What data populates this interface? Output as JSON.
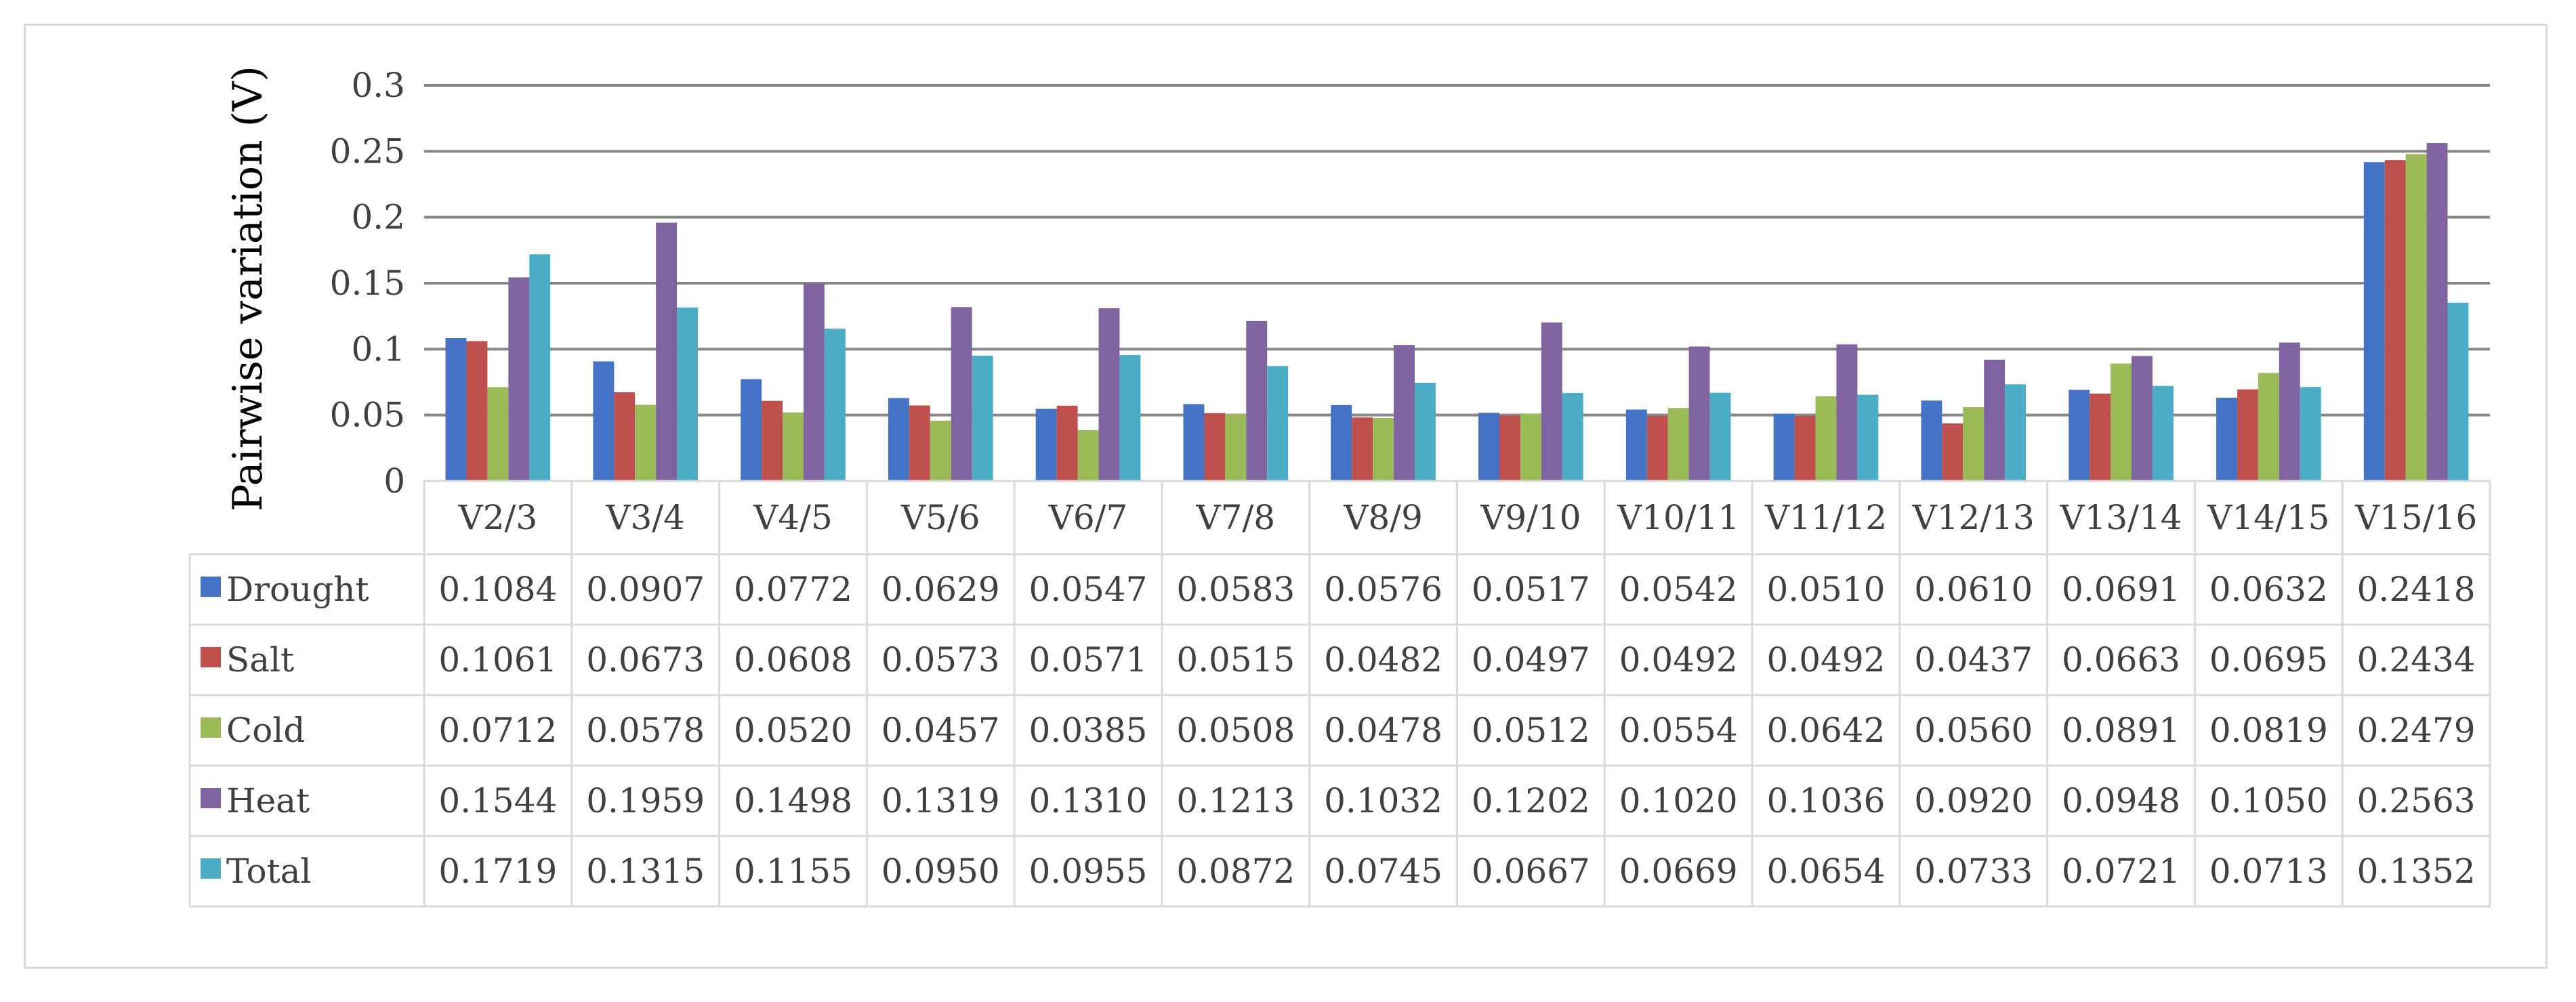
{
  "chart_data": {
    "type": "bar",
    "ylabel": "Pairwise variation (V)",
    "ylim": [
      0,
      0.3
    ],
    "yticks": [
      "0",
      "0.05",
      "0.1",
      "0.15",
      "0.2",
      "0.25",
      "0.3"
    ],
    "ytick_values": [
      0,
      0.05,
      0.1,
      0.15,
      0.2,
      0.25,
      0.3
    ],
    "grid": true,
    "legend": "data-table",
    "categories": [
      "V2/3",
      "V3/4",
      "V4/5",
      "V5/6",
      "V6/7",
      "V7/8",
      "V8/9",
      "V9/10",
      "V10/11",
      "V11/12",
      "V12/13",
      "V13/14",
      "V14/15",
      "V15/16"
    ],
    "series": [
      {
        "name": "Drought",
        "color": "#4472c4",
        "values": [
          0.1084,
          0.0907,
          0.0772,
          0.0629,
          0.0547,
          0.0583,
          0.0576,
          0.0517,
          0.0542,
          0.051,
          0.061,
          0.0691,
          0.0632,
          0.2418
        ],
        "labels": [
          "0.1084",
          "0.0907",
          "0.0772",
          "0.0629",
          "0.0547",
          "0.0583",
          "0.0576",
          "0.0517",
          "0.0542",
          "0.0510",
          "0.0610",
          "0.0691",
          "0.0632",
          "0.2418"
        ]
      },
      {
        "name": "Salt",
        "color": "#c0504d",
        "values": [
          0.1061,
          0.0673,
          0.0608,
          0.0573,
          0.0571,
          0.0515,
          0.0482,
          0.0497,
          0.0492,
          0.0492,
          0.0437,
          0.0663,
          0.0695,
          0.2434
        ],
        "labels": [
          "0.1061",
          "0.0673",
          "0.0608",
          "0.0573",
          "0.0571",
          "0.0515",
          "0.0482",
          "0.0497",
          "0.0492",
          "0.0492",
          "0.0437",
          "0.0663",
          "0.0695",
          "0.2434"
        ]
      },
      {
        "name": "Cold",
        "color": "#9bbb59",
        "values": [
          0.0712,
          0.0578,
          0.052,
          0.0457,
          0.0385,
          0.0508,
          0.0478,
          0.0512,
          0.0554,
          0.0642,
          0.056,
          0.0891,
          0.0819,
          0.2479
        ],
        "labels": [
          "0.0712",
          "0.0578",
          "0.0520",
          "0.0457",
          "0.0385",
          "0.0508",
          "0.0478",
          "0.0512",
          "0.0554",
          "0.0642",
          "0.0560",
          "0.0891",
          "0.0819",
          "0.2479"
        ]
      },
      {
        "name": "Heat",
        "color": "#8064a2",
        "values": [
          0.1544,
          0.1959,
          0.1498,
          0.1319,
          0.131,
          0.1213,
          0.1032,
          0.1202,
          0.102,
          0.1036,
          0.092,
          0.0948,
          0.105,
          0.2563
        ],
        "labels": [
          "0.1544",
          "0.1959",
          "0.1498",
          "0.1319",
          "0.1310",
          "0.1213",
          "0.1032",
          "0.1202",
          "0.1020",
          "0.1036",
          "0.0920",
          "0.0948",
          "0.1050",
          "0.2563"
        ]
      },
      {
        "name": "Total",
        "color": "#4bacc6",
        "values": [
          0.1719,
          0.1315,
          0.1155,
          0.095,
          0.0955,
          0.0872,
          0.0745,
          0.0667,
          0.0669,
          0.0654,
          0.0733,
          0.0721,
          0.0713,
          0.1352
        ],
        "labels": [
          "0.1719",
          "0.1315",
          "0.1155",
          "0.0950",
          "0.0955",
          "0.0872",
          "0.0745",
          "0.0667",
          "0.0669",
          "0.0654",
          "0.0733",
          "0.0721",
          "0.0713",
          "0.1352"
        ]
      }
    ]
  }
}
